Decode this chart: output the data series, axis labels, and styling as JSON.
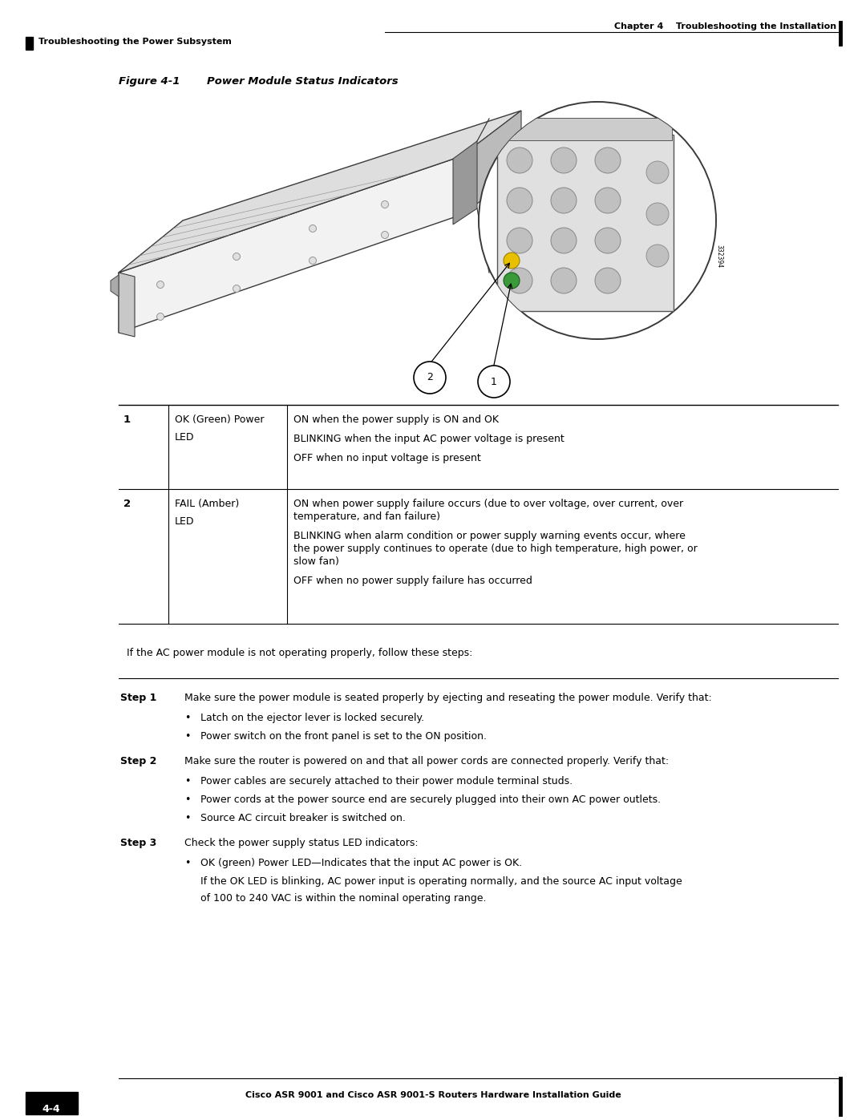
{
  "page_width": 10.8,
  "page_height": 13.97,
  "bg_color": "#ffffff",
  "header_text_right": "Chapter 4    Troubleshooting the Installation",
  "header_text_left": "Troubleshooting the Power Subsystem",
  "figure_title": "Figure 4-1",
  "figure_subtitle": "Power Module Status Indicators",
  "table_rows": [
    {
      "num": "1",
      "label_line1": "OK (Green) Power",
      "label_line2": "LED",
      "descriptions": [
        "ON when the power supply is ON and OK",
        "BLINKING when the input AC power voltage is present",
        "OFF when no input voltage is present"
      ]
    },
    {
      "num": "2",
      "label_line1": "FAIL (Amber)",
      "label_line2": "LED",
      "descriptions": [
        "ON when power supply failure occurs (due to over voltage, over current, over temperature, and fan failure)",
        "BLINKING when alarm condition or power supply warning events occur, where the power supply continues to operate (due to high temperature, high power, or slow fan)",
        "OFF when no power supply failure has occurred"
      ]
    }
  ],
  "step_intro": "If the AC power module is not operating properly, follow these steps:",
  "steps": [
    {
      "label": "Step 1",
      "text": "Make sure the power module is seated properly by ejecting and reseating the power module. Verify that:",
      "bullets": [
        "Latch on the ejector lever is locked securely.",
        "Power switch on the front panel is set to the ON position."
      ]
    },
    {
      "label": "Step 2",
      "text": "Make sure the router is powered on and that all power cords are connected properly. Verify that:",
      "bullets": [
        "Power cables are securely attached to their power module terminal studs.",
        "Power cords at the power source end are securely plugged into their own AC power outlets.",
        "Source AC circuit breaker is switched on."
      ]
    },
    {
      "label": "Step 3",
      "text": "Check the power supply status LED indicators:",
      "bullets": [
        "OK (green) Power LED—Indicates that the input AC power is OK."
      ],
      "sub_text_lines": [
        "If the OK LED is blinking, AC power input is operating normally, and the source AC input voltage",
        "of 100 to 240 VAC is within the nominal operating range."
      ]
    }
  ],
  "footer_text": "Cisco ASR 9001 and Cisco ASR 9001-S Routers Hardware Installation Guide",
  "footer_page": "4-4"
}
